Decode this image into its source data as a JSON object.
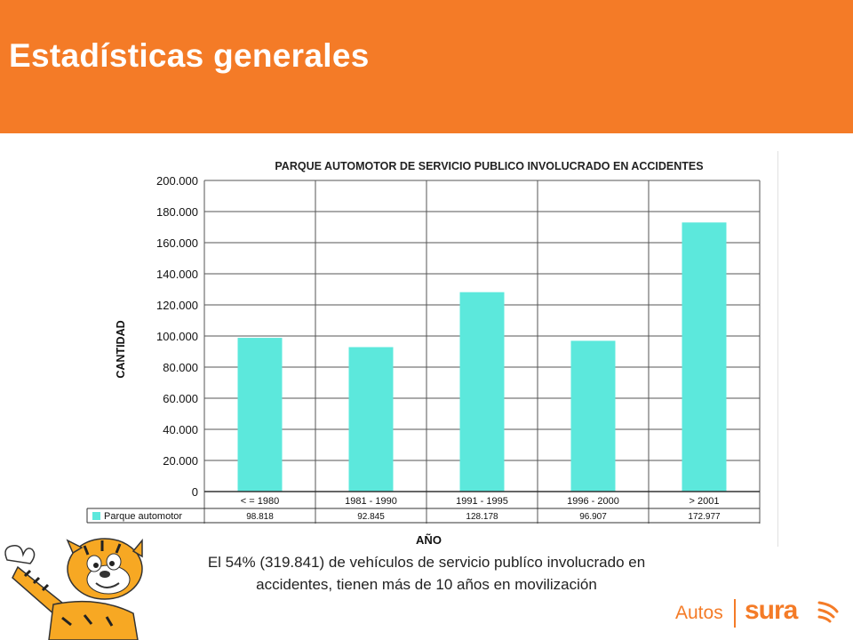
{
  "slide": {
    "title": "Estadísticas generales",
    "caption_line1": "El 54% (319.841) de vehículos de servicio publíco involucrado en",
    "caption_line2": "accidentes, tienen más de 10 años en movilización"
  },
  "logo": {
    "left_text": "Autos",
    "brand": "sura"
  },
  "colors": {
    "header": "#f47b27",
    "bar": "#5ce8dc",
    "brand": "#f47b27"
  },
  "chart_data": {
    "type": "bar",
    "title": "PARQUE AUTOMOTOR DE SERVICIO PUBLICO INVOLUCRADO EN ACCIDENTES",
    "xlabel": "AÑO",
    "ylabel": "CANTIDAD",
    "ylim": [
      0,
      200000
    ],
    "yticks": [
      0,
      20000,
      40000,
      60000,
      80000,
      100000,
      120000,
      140000,
      160000,
      180000,
      200000
    ],
    "ytick_labels": [
      "0",
      "20.000",
      "40.000",
      "60.000",
      "80.000",
      "100.000",
      "120.000",
      "140.000",
      "160.000",
      "180.000",
      "200.000"
    ],
    "categories": [
      "< = 1980",
      "1981 - 1990",
      "1991 - 1995",
      "1996 - 2000",
      "> 2001"
    ],
    "series": [
      {
        "name": "Parque automotor",
        "values": [
          98818,
          92845,
          128178,
          96907,
          172977
        ],
        "value_labels": [
          "98.818",
          "92.845",
          "128.178",
          "96.907",
          "172.977"
        ]
      }
    ],
    "grid": true,
    "legend": "data-table"
  }
}
